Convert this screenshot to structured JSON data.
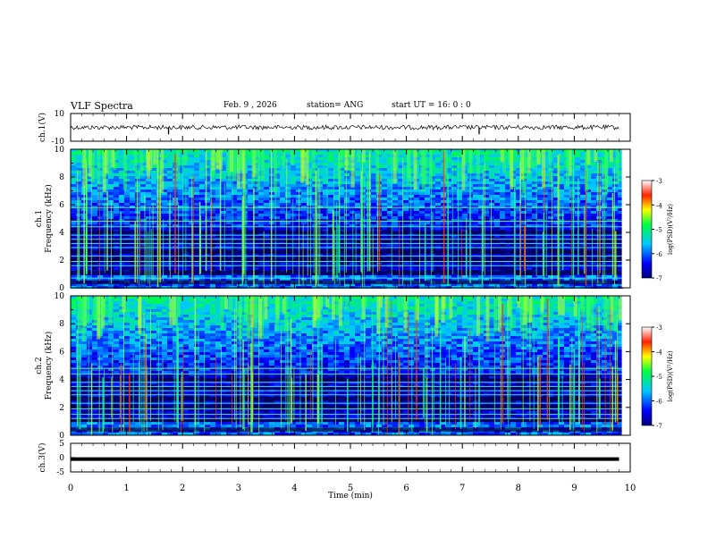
{
  "header": {
    "title": "VLF Spectra",
    "date": "Feb. 9 , 2026",
    "station": "station= ANG",
    "start": "start UT = 16: 0 : 0"
  },
  "colors": {
    "background": "#ffffff",
    "axis": "#000000",
    "trace": "#000000"
  },
  "chart_data": [
    {
      "type": "line",
      "name": "ch1-waveform",
      "ylabel": "ch.1(V)",
      "ylim": [
        -10,
        10
      ],
      "yticks": [
        "10",
        "-10"
      ],
      "x": [
        0,
        9.8
      ],
      "baseline": 0,
      "spikes": [
        {
          "x": 1.75,
          "y": -5
        },
        {
          "x": 7.3,
          "y": -5
        }
      ]
    },
    {
      "type": "heatmap",
      "name": "ch1-spectrogram",
      "ylabel": "Frequency (kHz)",
      "ylabel2": "ch.1",
      "ylim": [
        0,
        10
      ],
      "yticks": [
        "0",
        "2",
        "4",
        "6",
        "8",
        "10"
      ],
      "colorbar": {
        "label": "log(PSD)(V²/Hz)",
        "ticks": [
          "-3",
          "-4",
          "-5",
          "-6",
          "-7"
        ],
        "range": [
          -7,
          -3
        ]
      },
      "lines_khz": [
        0.7,
        1.6,
        1.9,
        2.3,
        2.9,
        3.2,
        3.5,
        3.8,
        4.4,
        4.8,
        5.8
      ]
    },
    {
      "type": "heatmap",
      "name": "ch2-spectrogram",
      "ylabel": "Frequency (kHz)",
      "ylabel2": "ch.2",
      "ylim": [
        0,
        10
      ],
      "yticks": [
        "0",
        "2",
        "4",
        "6",
        "8",
        "10"
      ],
      "colorbar": {
        "label": "log(PSD)(V²/Hz)",
        "ticks": [
          "-3",
          "-4",
          "-5",
          "-6",
          "-7"
        ],
        "range": [
          -7,
          -3
        ]
      },
      "lines_khz": [
        1.2,
        1.5,
        1.9,
        2.3,
        2.9,
        3.2,
        3.5,
        3.8,
        4.4,
        4.8
      ]
    },
    {
      "type": "line",
      "name": "ch3-waveform",
      "ylabel": "ch.3(V)",
      "ylim": [
        -5,
        5
      ],
      "yticks": [
        "5",
        "0",
        "-5"
      ],
      "x": [
        0,
        9.8
      ],
      "baseline": -0.5
    }
  ],
  "xaxis": {
    "label": "Time (min)",
    "xlim": [
      0,
      10
    ],
    "ticks": [
      "0",
      "1",
      "2",
      "3",
      "4",
      "5",
      "6",
      "7",
      "8",
      "9",
      "10"
    ]
  }
}
